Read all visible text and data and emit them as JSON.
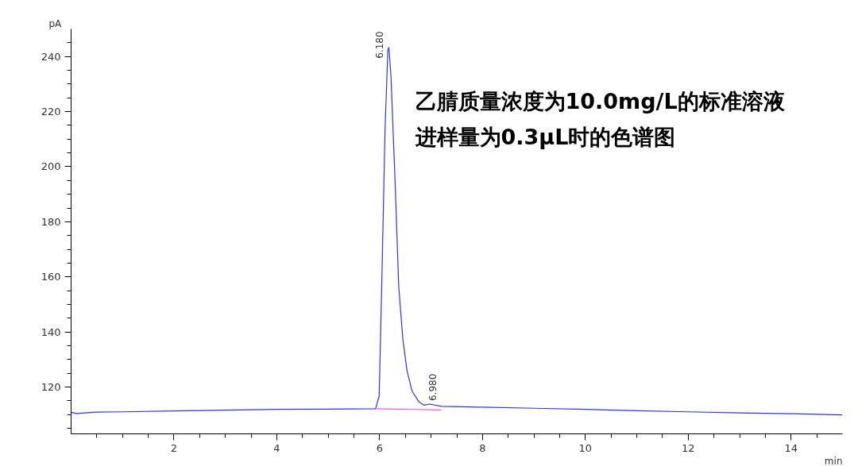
{
  "chart_data": {
    "type": "line",
    "title": "乙腈质量浓度为10.0mg/L的标准溶液",
    "subtitle": "进样量为0.3μL时的色谱图",
    "xlabel": "min",
    "ylabel": "pA",
    "series": [
      {
        "color": "#3030ff",
        "x": [
          0,
          0.1,
          0.5,
          1,
          2,
          3,
          4,
          5,
          5.92,
          5.99,
          6.04,
          6.105,
          6.16,
          6.18,
          6.22,
          6.3,
          6.37,
          6.45,
          6.53,
          6.63,
          6.76,
          6.87,
          6.97,
          7.2,
          8,
          9,
          10,
          11,
          12,
          13,
          14,
          14.5,
          15
        ],
        "values": [
          110.8,
          110.4,
          110.9,
          111.0,
          111.3,
          111.6,
          111.9,
          112.0,
          112.1,
          116.7,
          156.7,
          213.9,
          242.4,
          243.3,
          232.8,
          194.7,
          156.7,
          137.6,
          126.1,
          118.5,
          114.7,
          113.4,
          113.8,
          113.0,
          112.7,
          112.3,
          111.9,
          111.4,
          111.0,
          110.6,
          110.3,
          110.1,
          109.9
        ]
      },
      {
        "type": "line",
        "color": "#ff55dd",
        "x": [
          5.92,
          7.2
        ],
        "values": [
          112.1,
          111.7
        ]
      }
    ],
    "xlim": [
      0,
      15
    ],
    "ylim": [
      103,
      250
    ],
    "xticks": [
      {
        "value": 0.5,
        "label": null
      },
      {
        "value": 1,
        "label": null
      },
      {
        "value": 1.5,
        "label": null
      },
      2,
      {
        "value": 2.5,
        "label": null
      },
      {
        "value": 3,
        "label": null
      },
      {
        "value": 3.5,
        "label": null
      },
      4,
      {
        "value": 4.5,
        "label": null
      },
      {
        "value": 5,
        "label": null
      },
      {
        "value": 5.5,
        "label": null
      },
      6,
      {
        "value": 6.5,
        "label": null
      },
      {
        "value": 7,
        "label": null
      },
      {
        "value": 7.5,
        "label": null
      },
      8,
      {
        "value": 8.5,
        "label": null
      },
      {
        "value": 9,
        "label": null
      },
      {
        "value": 9.5,
        "label": null
      },
      10,
      {
        "value": 10.5,
        "label": null
      },
      {
        "value": 11,
        "label": null
      },
      {
        "value": 11.5,
        "label": null
      },
      12,
      {
        "value": 12.5,
        "label": null
      },
      {
        "value": 13,
        "label": null
      },
      {
        "value": 13.5,
        "label": null
      },
      14,
      {
        "value": 14.5,
        "label": null
      }
    ],
    "yticks": [
      {
        "value": 105,
        "label": null
      },
      {
        "value": 110,
        "label": null
      },
      {
        "value": 115,
        "label": null
      },
      120,
      {
        "value": 125,
        "label": null
      },
      {
        "value": 130,
        "label": null
      },
      {
        "value": 135,
        "label": null
      },
      140,
      {
        "value": 145,
        "label": null
      },
      {
        "value": 150,
        "label": null
      },
      {
        "value": 155,
        "label": null
      },
      160,
      {
        "value": 165,
        "label": null
      },
      {
        "value": 170,
        "label": null
      },
      {
        "value": 175,
        "label": null
      },
      180,
      {
        "value": 185,
        "label": null
      },
      {
        "value": 190,
        "label": null
      },
      {
        "value": 195,
        "label": null
      },
      200,
      {
        "value": 205,
        "label": null
      },
      {
        "value": 210,
        "label": null
      },
      {
        "value": 215,
        "label": null
      },
      220,
      {
        "value": 225,
        "label": null
      },
      {
        "value": 230,
        "label": null
      },
      {
        "value": 235,
        "label": null
      },
      240,
      {
        "value": 245,
        "label": null
      }
    ],
    "annotations": [
      {
        "text": "6.180",
        "x": 6.18,
        "y": 243.3
      },
      {
        "text": "6.980",
        "x": 6.97,
        "y": 113.8
      }
    ],
    "grid": false,
    "marker": "none",
    "line_style": "solid"
  }
}
